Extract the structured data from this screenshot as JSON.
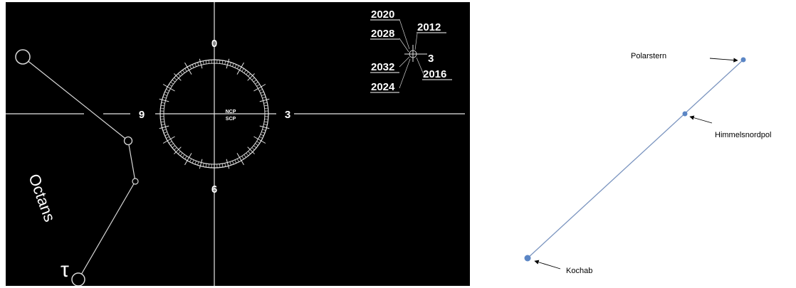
{
  "colors": {
    "left_background": "#000000",
    "right_background": "#ffffff",
    "chart_lines": "#e6e6e6",
    "star_dot": "#5b86c5",
    "star_line": "#7a94bf"
  },
  "left_diagram": {
    "dial": {
      "top": "0",
      "right": "3",
      "bottom": "6",
      "left": "9",
      "center_top": "NCP",
      "center_bottom": "SCP"
    },
    "inset": {
      "years": [
        "2020",
        "2028",
        "2032",
        "2024",
        "2012",
        "2016"
      ],
      "hour": "3"
    },
    "constellation": "Octans",
    "star_symbol": "τ"
  },
  "right_diagram": {
    "labels": {
      "polarstern": "Polarstern",
      "himmelsnordpol": "Himmelsnordpol",
      "kochab": "Kochab"
    }
  }
}
